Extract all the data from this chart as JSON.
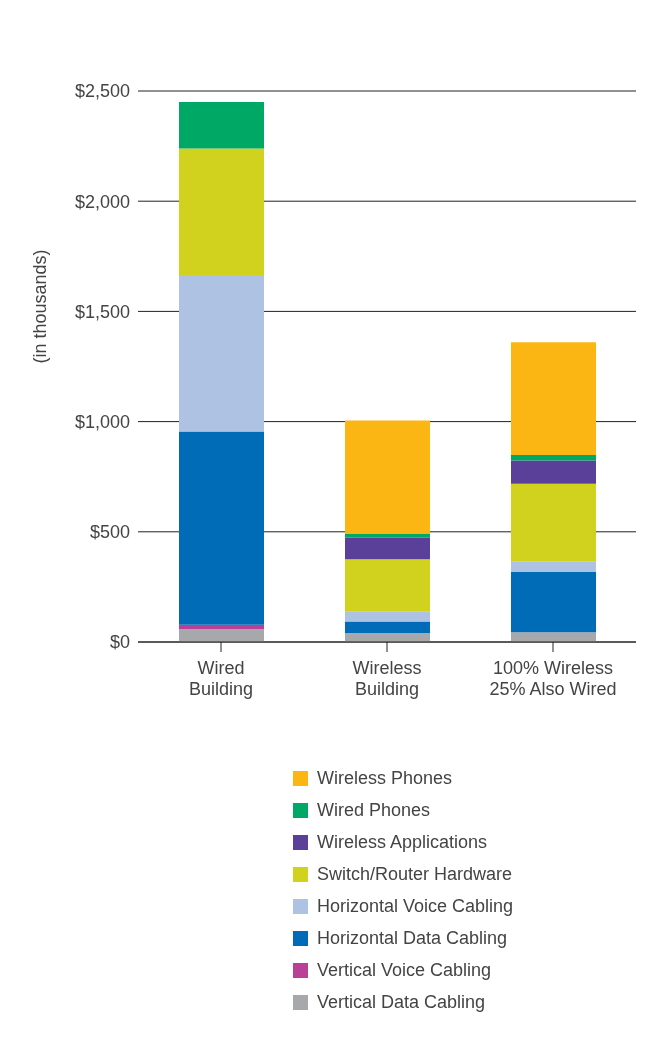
{
  "chart_data": {
    "type": "bar",
    "stacked": true,
    "ylabel": "(in thousands)",
    "categories": [
      "Wired\nBuilding",
      "Wireless\nBuilding",
      "100% Wireless\n25% Also Wired"
    ],
    "series": [
      {
        "name": "Vertical Data Cabling",
        "color": "#a6a8ab",
        "values": [
          58,
          41,
          44
        ]
      },
      {
        "name": "Vertical Voice Cabling",
        "color": "#b93f97",
        "values": [
          20,
          0,
          0
        ]
      },
      {
        "name": "Horizontal Data Cabling",
        "color": "#006bb6",
        "values": [
          877,
          52,
          274
        ]
      },
      {
        "name": "Horizontal Voice Cabling",
        "color": "#aec2e3",
        "values": [
          710,
          46,
          48
        ]
      },
      {
        "name": "Switch/Router Hardware",
        "color": "#d0d21e",
        "values": [
          574,
          236,
          352
        ]
      },
      {
        "name": "Wireless Applications",
        "color": "#5b4099",
        "values": [
          0,
          98,
          105
        ]
      },
      {
        "name": "Wired Phones",
        "color": "#00a865",
        "values": [
          211,
          19,
          25
        ]
      },
      {
        "name": "Wireless Phones",
        "color": "#fbb614",
        "values": [
          0,
          513,
          512
        ]
      }
    ],
    "ylim": [
      0,
      2500
    ],
    "yticks": [
      {
        "value": 0,
        "label": "$0"
      },
      {
        "value": 500,
        "label": "$500"
      },
      {
        "value": 1000,
        "label": "$1,000"
      },
      {
        "value": 1500,
        "label": "$1,500"
      },
      {
        "value": 2000,
        "label": "$2,000"
      },
      {
        "value": 2500,
        "label": "$2,500"
      }
    ],
    "grid": "y",
    "legend": "bottom"
  }
}
